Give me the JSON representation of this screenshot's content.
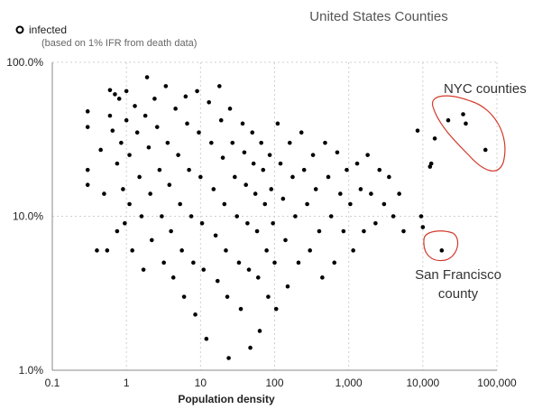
{
  "chart_data": {
    "type": "scatter",
    "title": "United States Counties",
    "xlabel": "Population density",
    "ylabel": "",
    "x_scale": "log",
    "y_scale": "log",
    "xlim": [
      0.1,
      100000
    ],
    "ylim": [
      1,
      100
    ],
    "grid": true,
    "legend_position": "top-left",
    "x_ticks": [
      {
        "value": 0.1,
        "label": "0.1"
      },
      {
        "value": 1,
        "label": "1"
      },
      {
        "value": 10,
        "label": "10"
      },
      {
        "value": 100,
        "label": "100"
      },
      {
        "value": 1000,
        "label": "1,000"
      },
      {
        "value": 10000,
        "label": "10,000"
      },
      {
        "value": 100000,
        "label": "100,000"
      }
    ],
    "y_ticks": [
      {
        "value": 1,
        "label": "1.0%"
      },
      {
        "value": 10,
        "label": "10.0%"
      },
      {
        "value": 100,
        "label": "100.0%"
      }
    ],
    "series": [
      {
        "name": "infected",
        "subtitle": "(based on 1% IFR from death data)",
        "color": "#000000",
        "marker": "filled-circle",
        "points": [
          [
            0.3,
            48
          ],
          [
            0.3,
            38
          ],
          [
            0.3,
            20
          ],
          [
            0.3,
            16
          ],
          [
            0.4,
            6
          ],
          [
            0.45,
            27
          ],
          [
            0.5,
            14
          ],
          [
            0.55,
            6
          ],
          [
            0.6,
            66
          ],
          [
            0.6,
            45
          ],
          [
            0.65,
            36
          ],
          [
            0.7,
            62
          ],
          [
            0.75,
            22
          ],
          [
            0.75,
            8
          ],
          [
            0.8,
            58
          ],
          [
            0.85,
            30
          ],
          [
            0.9,
            15
          ],
          [
            0.95,
            9
          ],
          [
            1.0,
            65
          ],
          [
            1.0,
            42
          ],
          [
            1.1,
            25
          ],
          [
            1.1,
            12
          ],
          [
            1.2,
            6
          ],
          [
            1.3,
            52
          ],
          [
            1.4,
            35
          ],
          [
            1.5,
            18
          ],
          [
            1.6,
            10
          ],
          [
            1.7,
            4.5
          ],
          [
            1.8,
            45
          ],
          [
            1.9,
            80
          ],
          [
            2.0,
            28
          ],
          [
            2.1,
            14
          ],
          [
            2.2,
            7
          ],
          [
            2.4,
            58
          ],
          [
            2.6,
            38
          ],
          [
            2.8,
            20
          ],
          [
            3.0,
            10
          ],
          [
            3.2,
            5
          ],
          [
            3.4,
            70
          ],
          [
            3.6,
            30
          ],
          [
            3.8,
            16
          ],
          [
            4.0,
            8
          ],
          [
            4.3,
            4
          ],
          [
            4.6,
            50
          ],
          [
            5.0,
            25
          ],
          [
            5.3,
            12
          ],
          [
            5.6,
            6
          ],
          [
            6.0,
            3
          ],
          [
            6.3,
            60
          ],
          [
            6.6,
            40
          ],
          [
            7.0,
            20
          ],
          [
            7.5,
            10
          ],
          [
            8.0,
            5
          ],
          [
            8.5,
            2.3
          ],
          [
            9.0,
            65
          ],
          [
            9.5,
            35
          ],
          [
            10,
            18
          ],
          [
            10.5,
            9
          ],
          [
            11,
            4.5
          ],
          [
            12,
            1.6
          ],
          [
            13,
            55
          ],
          [
            14,
            30
          ],
          [
            15,
            15
          ],
          [
            16,
            7.5
          ],
          [
            17,
            3.8
          ],
          [
            18,
            70
          ],
          [
            19,
            42
          ],
          [
            20,
            24
          ],
          [
            21,
            12
          ],
          [
            22,
            6
          ],
          [
            23,
            3
          ],
          [
            24,
            1.2
          ],
          [
            25,
            50
          ],
          [
            27,
            30
          ],
          [
            29,
            18
          ],
          [
            31,
            10
          ],
          [
            33,
            5
          ],
          [
            35,
            2.5
          ],
          [
            37,
            40
          ],
          [
            39,
            26
          ],
          [
            41,
            16
          ],
          [
            43,
            9
          ],
          [
            45,
            4.5
          ],
          [
            47,
            1.4
          ],
          [
            50,
            35
          ],
          [
            52,
            22
          ],
          [
            55,
            14
          ],
          [
            58,
            8
          ],
          [
            60,
            4
          ],
          [
            63,
            1.8
          ],
          [
            66,
            30
          ],
          [
            70,
            20
          ],
          [
            74,
            12
          ],
          [
            78,
            6
          ],
          [
            82,
            3
          ],
          [
            86,
            25
          ],
          [
            90,
            15
          ],
          [
            95,
            9
          ],
          [
            100,
            5
          ],
          [
            105,
            2.5
          ],
          [
            110,
            40
          ],
          [
            120,
            22
          ],
          [
            130,
            13
          ],
          [
            140,
            7
          ],
          [
            150,
            3.5
          ],
          [
            160,
            30
          ],
          [
            175,
            18
          ],
          [
            190,
            10
          ],
          [
            210,
            5
          ],
          [
            230,
            35
          ],
          [
            250,
            20
          ],
          [
            275,
            12
          ],
          [
            300,
            6
          ],
          [
            330,
            25
          ],
          [
            360,
            15
          ],
          [
            400,
            8
          ],
          [
            440,
            4
          ],
          [
            480,
            30
          ],
          [
            530,
            18
          ],
          [
            580,
            10
          ],
          [
            640,
            5
          ],
          [
            700,
            26
          ],
          [
            770,
            14
          ],
          [
            850,
            8
          ],
          [
            940,
            20
          ],
          [
            1050,
            12
          ],
          [
            1150,
            6
          ],
          [
            1300,
            22
          ],
          [
            1450,
            15
          ],
          [
            1600,
            8
          ],
          [
            1800,
            25
          ],
          [
            2000,
            14
          ],
          [
            2300,
            9
          ],
          [
            2600,
            20
          ],
          [
            3000,
            12
          ],
          [
            3500,
            18
          ],
          [
            4000,
            10
          ],
          [
            4800,
            14
          ],
          [
            5500,
            8
          ],
          [
            8500,
            36
          ],
          [
            9500,
            10
          ],
          [
            10000,
            8.5
          ],
          [
            12500,
            21
          ],
          [
            13000,
            22
          ],
          [
            14500,
            32
          ],
          [
            18000,
            6
          ],
          [
            22000,
            42
          ],
          [
            35000,
            46
          ],
          [
            38000,
            40
          ],
          [
            70000,
            27
          ]
        ]
      }
    ],
    "annotations": [
      {
        "text_lines": [
          "NYC counties"
        ],
        "circle_color": "#d23a2a"
      },
      {
        "text_lines": [
          "San Francisco",
          "county"
        ],
        "circle_color": "#d23a2a"
      }
    ]
  }
}
